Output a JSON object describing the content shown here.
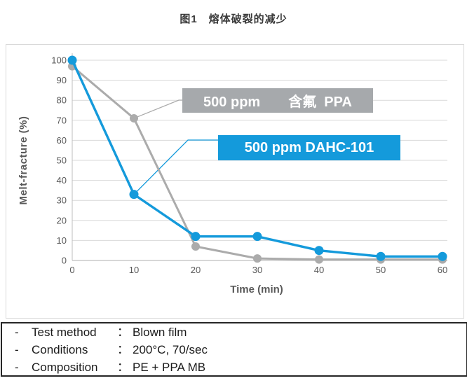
{
  "title": "图1　熔体破裂的减少",
  "chart_data": {
    "type": "line",
    "x": [
      0,
      10,
      20,
      30,
      40,
      50,
      60
    ],
    "xlabel": "Time (min)",
    "ylabel": "Melt-fracture (%)",
    "xlim": [
      0,
      60
    ],
    "ylim": [
      0,
      100
    ],
    "xticks": [
      0,
      10,
      20,
      30,
      40,
      50,
      60
    ],
    "yticks": [
      0,
      10,
      20,
      30,
      40,
      50,
      60,
      70,
      80,
      90,
      100
    ],
    "grid": "horizontal",
    "legend_position": "callout-labels",
    "series": [
      {
        "name": "500 ppm 含氟 PPA",
        "color": "#ababab",
        "marker_color": "#ababab",
        "values": [
          97,
          71,
          7,
          1,
          0.5,
          0.5,
          0.5
        ]
      },
      {
        "name": "500 ppm DAHC-101",
        "color": "#149adb",
        "marker_color": "#149adb",
        "values": [
          100,
          33,
          12,
          12,
          5,
          2,
          2
        ]
      }
    ],
    "annotations": [
      {
        "text": "500 ppm　　含氟  PPA",
        "box_color": "#a6a9ac",
        "series": 0,
        "attached_x": 10,
        "attached_y": 71
      },
      {
        "text": "500 ppm DAHC-101",
        "box_color": "#149adb",
        "series": 1,
        "attached_x": 10,
        "attached_y": 33
      }
    ]
  },
  "colors": {
    "grid": "#d9d9d9",
    "axis": "#bfbfbf",
    "tick_text": "#595959",
    "panel_border": "#d9d9d9",
    "footer_border": "#262626"
  },
  "footer": {
    "bullet": "-",
    "colon": "：",
    "items": [
      {
        "label": "Test method",
        "value": "Blown film"
      },
      {
        "label": "Conditions",
        "value": "200°C, 70/sec"
      },
      {
        "label": "Composition",
        "value": "PE + PPA MB"
      }
    ]
  }
}
